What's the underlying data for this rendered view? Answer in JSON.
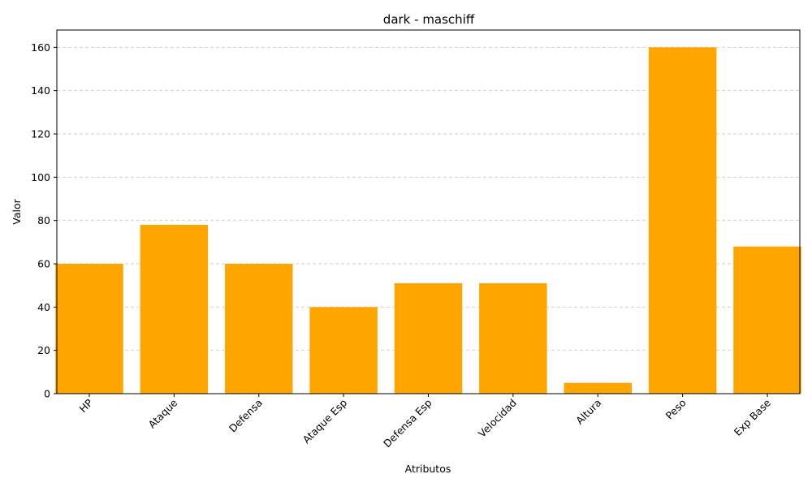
{
  "chart_data": {
    "type": "bar",
    "title": "dark - maschiff",
    "xlabel": "Atributos",
    "ylabel": "Valor",
    "categories": [
      "HP",
      "Ataque",
      "Defensa",
      "Ataque Esp",
      "Defensa Esp",
      "Velocidad",
      "Altura",
      "Peso",
      "Exp Base"
    ],
    "values": [
      60,
      78,
      60,
      40,
      51,
      51,
      5,
      160,
      68
    ],
    "ylim": [
      0,
      168
    ],
    "yticks": [
      0,
      20,
      40,
      60,
      80,
      100,
      120,
      140,
      160
    ],
    "grid": "y-dashed",
    "colors": {
      "bar": "#FFA500",
      "grid": "#cccccc",
      "axis": "#000000"
    }
  }
}
